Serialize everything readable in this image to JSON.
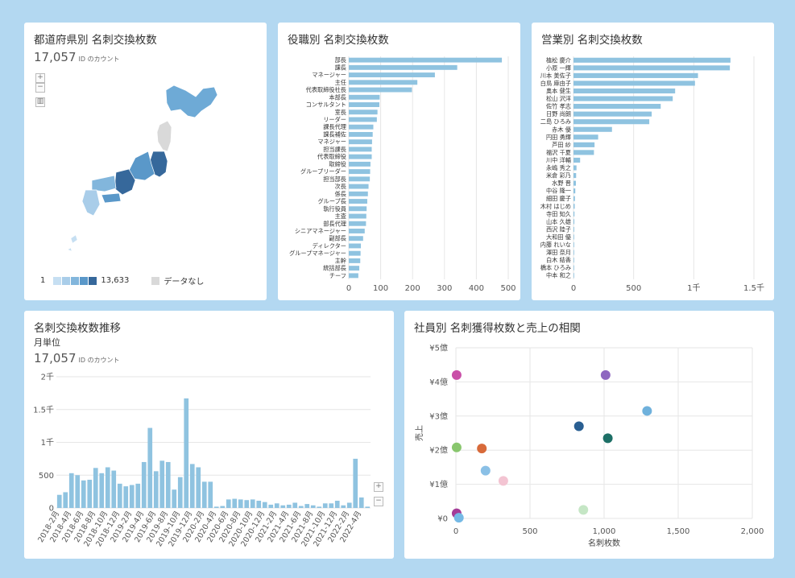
{
  "colors": {
    "bar": "#8fc3e0",
    "grid": "#e6e6e6",
    "axis": "#999"
  },
  "panels": {
    "map": {
      "title": "都道府県別 名刺交換枚数",
      "count": "17,057",
      "count_unit": "ID のカウント",
      "zoom_in": "+",
      "zoom_out": "−",
      "chart_icon": "▥",
      "legend_min": "1",
      "legend_max": "13,633",
      "legend_nodata": "データなし",
      "legend_colors": [
        "#c6dff2",
        "#a9cde9",
        "#82b6dc",
        "#5a98c9",
        "#36689b"
      ],
      "nodata_color": "#d9d9d9"
    },
    "role": {
      "title": "役職別 名刺交換枚数"
    },
    "sales": {
      "title": "営業別 名刺交換枚数"
    },
    "trend": {
      "title": "名刺交換枚数推移",
      "subtitle": "月単位",
      "count": "17,057",
      "count_unit": "ID のカウント",
      "zoom_in": "+",
      "zoom_out": "−"
    },
    "scatter": {
      "title": "社員別 名刺獲得枚数と売上の相関"
    }
  },
  "chart_data": [
    {
      "id": "role",
      "type": "bar",
      "orientation": "horizontal",
      "title": "役職別 名刺交換枚数",
      "categories": [
        "部長",
        "課長",
        "マネージャー",
        "主任",
        "代表取締役社長",
        "本部長",
        "コンサルタント",
        "室長",
        "リーダー",
        "課長代理",
        "課長補佐",
        "マネジャー",
        "担当課長",
        "代表取締役",
        "取締役",
        "グループリーダー",
        "担当部長",
        "次長",
        "係長",
        "グループ長",
        "執行役員",
        "主査",
        "部長代理",
        "シニアマネージャー",
        "副部長",
        "ディレクター",
        "グループマネージャー",
        "主幹",
        "統括部長",
        "チーフ"
      ],
      "values": [
        480,
        340,
        270,
        215,
        198,
        97,
        96,
        90,
        88,
        77,
        75,
        73,
        72,
        72,
        68,
        67,
        66,
        62,
        60,
        58,
        56,
        55,
        54,
        50,
        45,
        38,
        37,
        36,
        33,
        30
      ],
      "xticks": [
        0,
        100,
        200,
        300,
        400,
        500
      ],
      "xtick_labels": [
        "0",
        "100",
        "200",
        "300",
        "400",
        "500"
      ],
      "xlim": [
        0,
        500
      ]
    },
    {
      "id": "sales",
      "type": "bar",
      "orientation": "horizontal",
      "title": "営業別 名刺交換枚数",
      "categories": [
        "植松 慶介",
        "小原 一輝",
        "川本 美佐子",
        "白鳥 麻由子",
        "奥本 健生",
        "松山 沢洋",
        "佐竹 孝志",
        "日野 尚朗",
        "二島 ひろみ",
        "赤木 優",
        "円田 勇輝",
        "芦田 紗",
        "福沢 千夏",
        "川中 洋輔",
        "永嶋 秀之",
        "米倉 彩乃",
        "水野 晋",
        "中谷 隆一",
        "細田 慶子",
        "木村 はじめ",
        "寺田 知久",
        "山本 久雄",
        "西沢 陸子",
        "大和田 優",
        "内藤 れいな",
        "澤田 奈月",
        "白木 結香",
        "橋本 ひろみ",
        "中本 和之"
      ],
      "values": [
        1305,
        1300,
        1035,
        1010,
        845,
        825,
        725,
        650,
        630,
        320,
        205,
        175,
        170,
        55,
        25,
        22,
        20,
        15,
        12,
        10,
        8,
        7,
        6,
        5,
        4,
        3,
        2,
        2,
        1
      ],
      "xticks": [
        0,
        500,
        1000,
        1500
      ],
      "xtick_labels": [
        "0",
        "500",
        "1千",
        "1.5千"
      ],
      "xlim": [
        0,
        1500
      ]
    },
    {
      "id": "trend",
      "type": "bar",
      "title": "名刺交換枚数推移",
      "categories": [
        "2018-2月",
        "2018-3月",
        "2018-4月",
        "2018-5月",
        "2018-6月",
        "2018-7月",
        "2018-8月",
        "2018-9月",
        "2018-10月",
        "2018-11月",
        "2018-12月",
        "2019-1月",
        "2019-2月",
        "2019-3月",
        "2019-4月",
        "2019-5月",
        "2019-6月",
        "2019-7月",
        "2019-8月",
        "2019-9月",
        "2019-10月",
        "2019-11月",
        "2019-12月",
        "2020-1月",
        "2020-2月",
        "2020-3月",
        "2020-4月",
        "2020-5月",
        "2020-6月",
        "2020-7月",
        "2020-8月",
        "2020-9月",
        "2020-10月",
        "2020-11月",
        "2020-12月",
        "2021-1月",
        "2021-2月",
        "2021-3月",
        "2021-4月",
        "2021-5月",
        "2021-6月",
        "2021-7月",
        "2021-8月",
        "2021-9月",
        "2021-10月",
        "2021-11月",
        "2021-12月",
        "2022-1月",
        "2022-2月",
        "2022-3月",
        "2022-4月",
        "2022-5月"
      ],
      "values": [
        200,
        240,
        530,
        500,
        420,
        430,
        610,
        530,
        620,
        570,
        370,
        330,
        350,
        370,
        700,
        1220,
        560,
        720,
        700,
        280,
        470,
        1670,
        670,
        620,
        400,
        400,
        20,
        30,
        130,
        140,
        130,
        120,
        130,
        110,
        90,
        50,
        70,
        40,
        50,
        80,
        30,
        60,
        40,
        20,
        70,
        70,
        110,
        40,
        80,
        750,
        160,
        20
      ],
      "xtick_labels": [
        "2018-2月",
        "2018-4月",
        "2018-6月",
        "2018-8月",
        "2018-10月",
        "2018-12月",
        "2019-2月",
        "2019-4月",
        "2019-6月",
        "2019-8月",
        "2019-10月",
        "2019-12月",
        "2020-2月",
        "2020-4月",
        "2020-6月",
        "2020-8月",
        "2020-10月",
        "2020-12月",
        "2021-2月",
        "2021-4月",
        "2021-6月",
        "2021-8月",
        "2021-10月",
        "2021-12月",
        "2022-2月",
        "2022-4月"
      ],
      "yticks": [
        0,
        500,
        1000,
        1500,
        2000
      ],
      "ytick_labels": [
        "0",
        "500",
        "1千",
        "1.5千",
        "2千"
      ],
      "ylim": [
        0,
        2000
      ]
    },
    {
      "id": "scatter",
      "type": "scatter",
      "title": "社員別 名刺獲得枚数と売上の相関",
      "xlabel": "名刺枚数",
      "ylabel": "売上",
      "xlim": [
        0,
        2000
      ],
      "ylim": [
        0,
        5
      ],
      "xticks": [
        0,
        500,
        1000,
        1500,
        2000
      ],
      "xtick_labels": [
        "0",
        "500",
        "1,000",
        "1,500",
        "2,000"
      ],
      "yticks": [
        0,
        1,
        2,
        3,
        4,
        5
      ],
      "ytick_labels": [
        "¥0",
        "¥1億",
        "¥2億",
        "¥3億",
        "¥4億",
        "¥5億"
      ],
      "points": [
        {
          "x": 5,
          "y": 4.2,
          "color": "#c94fa8"
        },
        {
          "x": 1010,
          "y": 4.2,
          "color": "#8e67c0"
        },
        {
          "x": 1290,
          "y": 3.15,
          "color": "#6fb1dc"
        },
        {
          "x": 830,
          "y": 2.7,
          "color": "#2a5f92"
        },
        {
          "x": 1025,
          "y": 2.35,
          "color": "#1d6f66"
        },
        {
          "x": 5,
          "y": 2.08,
          "color": "#88c66d"
        },
        {
          "x": 175,
          "y": 2.05,
          "color": "#d86a3a"
        },
        {
          "x": 200,
          "y": 1.4,
          "color": "#8ac0e6"
        },
        {
          "x": 320,
          "y": 1.1,
          "color": "#f3c4d2"
        },
        {
          "x": 860,
          "y": 0.25,
          "color": "#c5e6c5"
        },
        {
          "x": 5,
          "y": 0.15,
          "color": "#a43b97"
        },
        {
          "x": 20,
          "y": 0.02,
          "color": "#75b9e5"
        }
      ]
    }
  ]
}
